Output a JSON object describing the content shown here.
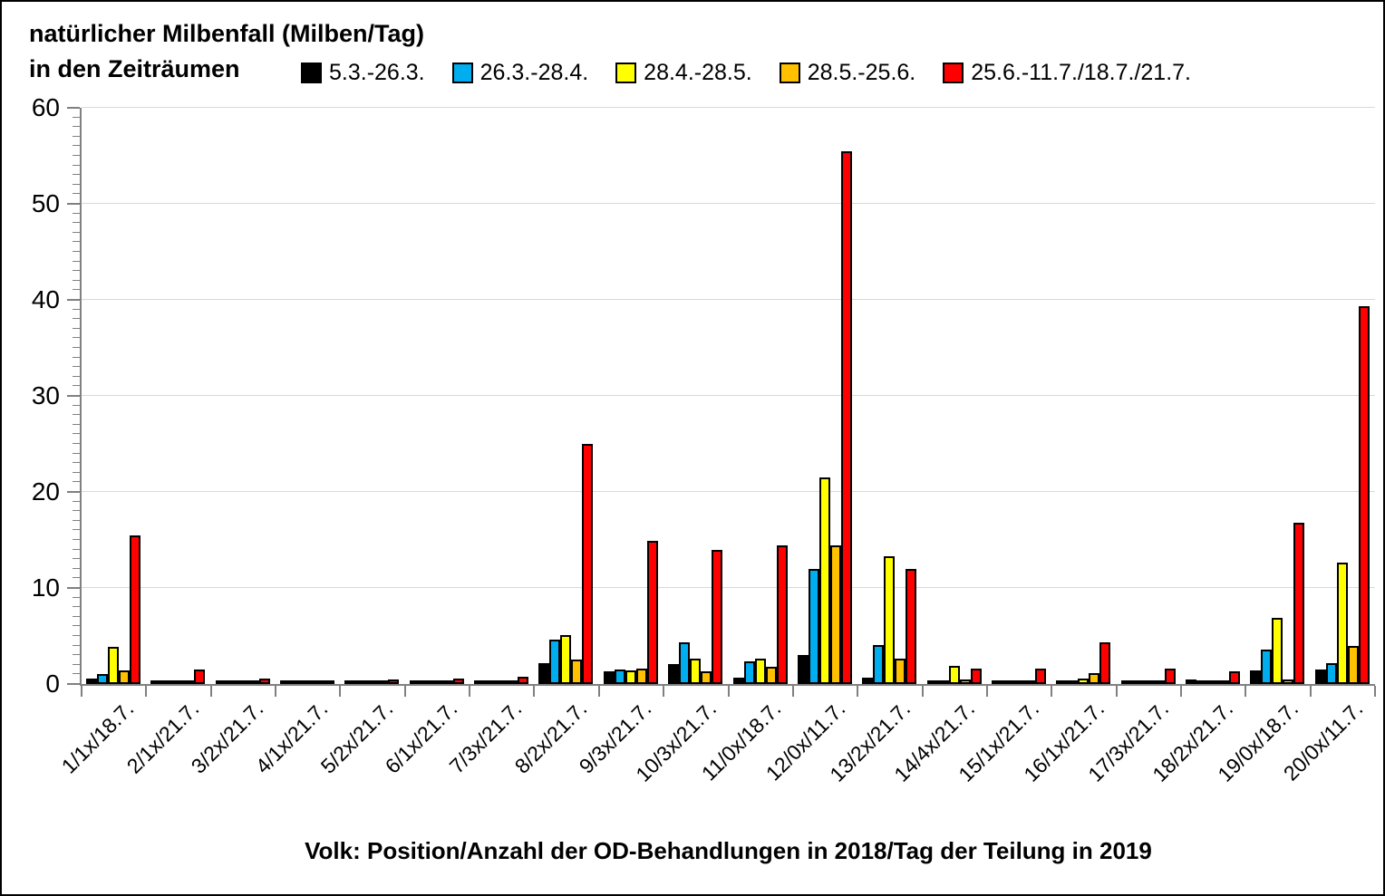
{
  "header": {
    "title_line1": "natürlicher Milbenfall (Milben/Tag)",
    "title_line2": "in den Zeiträumen"
  },
  "colors": {
    "series_black": "#000000",
    "series_blue": "#00AEEF",
    "series_yellow": "#FFFF00",
    "series_orange": "#FFC000",
    "series_red": "#FF0000",
    "gridline": "#d9d9d9",
    "axis": "#808080"
  },
  "chart_data": {
    "type": "bar",
    "title": "natürlicher Milbenfall (Milben/Tag) in den Zeiträumen",
    "xlabel": "Volk: Position/Anzahl der OD-Behandlungen in 2018/Tag der Teilung in 2019",
    "ylabel": "",
    "ylim": [
      0,
      60
    ],
    "yticks": [
      0,
      10,
      20,
      30,
      40,
      50,
      60
    ],
    "grid": "horizontal",
    "legend_position": "top",
    "categories": [
      "1/1x/18.7.",
      "2/1x/21.7.",
      "3/2x/21.7.",
      "4/1x/21.7.",
      "5/2x/21.7.",
      "6/1x/21.7.",
      "7/3x/21.7.",
      "8/2x/21.7.",
      "9/3x/21.7.",
      "10/3x/21.7.",
      "11/0x/18.7.",
      "12/0x/11.7.",
      "13/2x/21.7.",
      "14/4x/21.7.",
      "15/1x/21.7.",
      "16/1x/21.7.",
      "17/3x/21.7.",
      "18/2x/21.7.",
      "19/0x/18.7.",
      "20/0x/11.7."
    ],
    "series": [
      {
        "name": "5.3.-26.3.",
        "color": "#000000",
        "values": [
          0.6,
          0.2,
          0.2,
          0.4,
          0.2,
          0.15,
          0.1,
          2.2,
          1.3,
          2.1,
          0.7,
          3.0,
          0.7,
          0.2,
          0.2,
          0.2,
          0.2,
          0.5,
          1.4,
          1.5
        ]
      },
      {
        "name": "26.3.-28.4.",
        "color": "#00AEEF",
        "values": [
          1.0,
          0.1,
          0.05,
          0.05,
          0.05,
          0.1,
          0.35,
          4.6,
          1.5,
          4.3,
          2.4,
          12.0,
          4.1,
          0.15,
          0.1,
          0.1,
          0.1,
          0.2,
          3.6,
          2.2
        ]
      },
      {
        "name": "28.4.-28.5.",
        "color": "#FFFF00",
        "values": [
          3.9,
          0.1,
          0.1,
          0.3,
          0.1,
          0.1,
          0.1,
          5.1,
          1.4,
          2.6,
          2.6,
          21.5,
          13.3,
          1.9,
          0.15,
          0.55,
          0.1,
          0.2,
          6.9,
          12.6
        ]
      },
      {
        "name": "28.5.-25.6.",
        "color": "#FFC000",
        "values": [
          1.4,
          0.1,
          0.05,
          0.05,
          0.05,
          0.05,
          0.05,
          2.5,
          1.6,
          1.3,
          1.8,
          14.4,
          2.6,
          0.5,
          0.1,
          1.1,
          0.05,
          0.1,
          0.5,
          4.0
        ]
      },
      {
        "name": "25.6.-11.7./18.7./21.7.",
        "color": "#FF0000",
        "values": [
          15.5,
          1.5,
          0.6,
          0.35,
          0.45,
          0.55,
          0.8,
          25.0,
          14.9,
          14.0,
          14.4,
          55.5,
          12.0,
          1.6,
          1.6,
          4.3,
          1.6,
          1.3,
          16.8,
          39.3
        ]
      }
    ]
  }
}
